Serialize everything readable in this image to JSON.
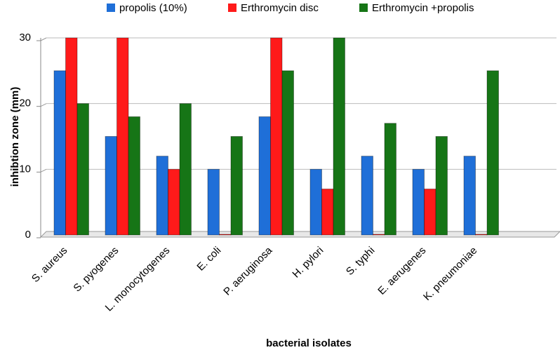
{
  "chart_data": {
    "type": "bar",
    "categories": [
      "S. aureus",
      "S. pyogenes",
      "L. monocytogenes",
      "E. coli",
      "P. aeruginosa",
      "H. pylori",
      "S. typhi",
      "E. aerugenes",
      "K. pneumoniae"
    ],
    "series": [
      {
        "name": "propolis (10%)",
        "color": "#1f6fd8",
        "values": [
          25,
          15,
          12,
          10,
          18,
          10,
          12,
          10,
          12
        ]
      },
      {
        "name": "Erthromycin disc",
        "color": "#ff1a1a",
        "values": [
          30,
          30,
          10,
          0,
          30,
          7,
          0,
          7,
          0
        ]
      },
      {
        "name": "Erthromycin  +propolis",
        "color": "#167516",
        "values": [
          20,
          18,
          20,
          15,
          25,
          30,
          17,
          15,
          25
        ]
      }
    ],
    "y_label": "inhibtion zone (mm)",
    "x_label": "bacterial isolates",
    "ylim": [
      0,
      30
    ],
    "yticks": [
      0,
      10,
      20,
      30
    ],
    "grid": true,
    "legend": "top"
  }
}
